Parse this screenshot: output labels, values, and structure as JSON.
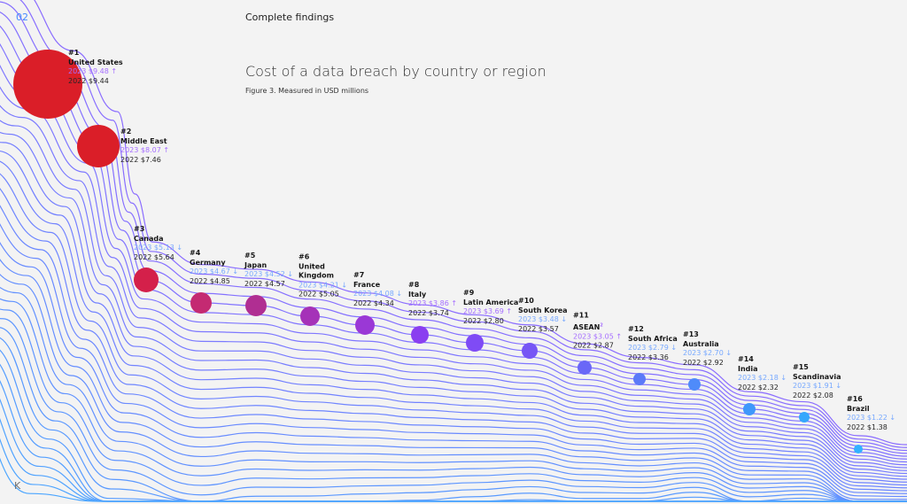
{
  "header": {
    "page_number": "02",
    "section": "Complete findings"
  },
  "footer": {
    "logo": "K"
  },
  "chart_data": {
    "type": "bubble-ranking",
    "title": "Cost of a data breach by country or region",
    "subtitle": "Figure 3. Measured in USD millions",
    "up_arrow": "↑",
    "down_arrow": "↓",
    "colors": {
      "up": "#a56eff",
      "down": "#78a9ff",
      "line_start": "#8a6cff",
      "line_end": "#4aa8ff"
    },
    "items": [
      {
        "rank": "#1",
        "name": "United States",
        "y2023": "2023 $9.48",
        "y2022": "2022 $9.44",
        "v2023": 9.48,
        "v2022": 9.44,
        "trend": "up",
        "color": "#da1e28"
      },
      {
        "rank": "#2",
        "name": "Middle East",
        "y2023": "2023 $8.07",
        "y2022": "2022 $7.46",
        "v2023": 8.07,
        "v2022": 7.46,
        "trend": "up",
        "color": "#da1e28"
      },
      {
        "rank": "#3",
        "name": "Canada",
        "y2023": "2023 $5.13",
        "y2022": "2022 $5.64",
        "v2023": 5.13,
        "v2022": 5.64,
        "trend": "down",
        "color": "#d4204a"
      },
      {
        "rank": "#4",
        "name": "Germany",
        "y2023": "2023 $4.67",
        "y2022": "2022 $4.85",
        "v2023": 4.67,
        "v2022": 4.85,
        "trend": "down",
        "color": "#c42a72"
      },
      {
        "rank": "#5",
        "name": "Japan",
        "y2023": "2023 $4.52",
        "y2022": "2022 $4.57",
        "v2023": 4.52,
        "v2022": 4.57,
        "trend": "down",
        "color": "#b02e92"
      },
      {
        "rank": "#6",
        "name": "United\nKingdom",
        "y2023": "2023 $4.21",
        "y2022": "2022 $5.05",
        "v2023": 4.21,
        "v2022": 5.05,
        "trend": "down",
        "color": "#a532b8"
      },
      {
        "rank": "#7",
        "name": "France",
        "y2023": "2023 $4.08",
        "y2022": "2022 $4.34",
        "v2023": 4.08,
        "v2022": 4.34,
        "trend": "down",
        "color": "#9a38d6"
      },
      {
        "rank": "#8",
        "name": "Italy",
        "y2023": "2023 $3.86",
        "y2022": "2022 $3.74",
        "v2023": 3.86,
        "v2022": 3.74,
        "trend": "up",
        "color": "#8a3ff0"
      },
      {
        "rank": "#9",
        "name": "Latin America",
        "y2023": "2023 $3.69",
        "y2022": "2022 $2.80",
        "v2023": 3.69,
        "v2022": 2.8,
        "trend": "up",
        "color": "#7f4bf5"
      },
      {
        "rank": "#10",
        "name": "South Korea",
        "y2023": "2023 $3.48",
        "y2022": "2022 $3.57",
        "v2023": 3.48,
        "v2022": 3.57,
        "trend": "down",
        "color": "#7656f5"
      },
      {
        "rank": "#11",
        "name": "ASEAN",
        "note": "2",
        "y2023": "2023 $3.05",
        "y2022": "2022 $2.87",
        "v2023": 3.05,
        "v2022": 2.87,
        "trend": "up",
        "color": "#6a67f7"
      },
      {
        "rank": "#12",
        "name": "South Africa",
        "y2023": "2023 $2.79",
        "y2022": "2022 $3.36",
        "v2023": 2.79,
        "v2022": 3.36,
        "trend": "down",
        "color": "#5b7af8"
      },
      {
        "rank": "#13",
        "name": "Australia",
        "y2023": "2023 $2.70",
        "y2022": "2022 $2.92",
        "v2023": 2.7,
        "v2022": 2.92,
        "trend": "down",
        "color": "#4f8bfa"
      },
      {
        "rank": "#14",
        "name": "India",
        "y2023": "2023 $2.18",
        "y2022": "2022 $2.32",
        "v2023": 2.18,
        "v2022": 2.32,
        "trend": "down",
        "color": "#3f98fb"
      },
      {
        "rank": "#15",
        "name": "Scandinavia",
        "y2023": "2023 $1.91",
        "y2022": "2022 $2.08",
        "v2023": 1.91,
        "v2022": 2.08,
        "trend": "down",
        "color": "#35a7fc"
      },
      {
        "rank": "#16",
        "name": "Brazil",
        "y2023": "2023 $1.22",
        "y2022": "2022 $1.38",
        "v2023": 1.22,
        "v2022": 1.38,
        "trend": "down",
        "color": "#33b1ff"
      }
    ]
  }
}
